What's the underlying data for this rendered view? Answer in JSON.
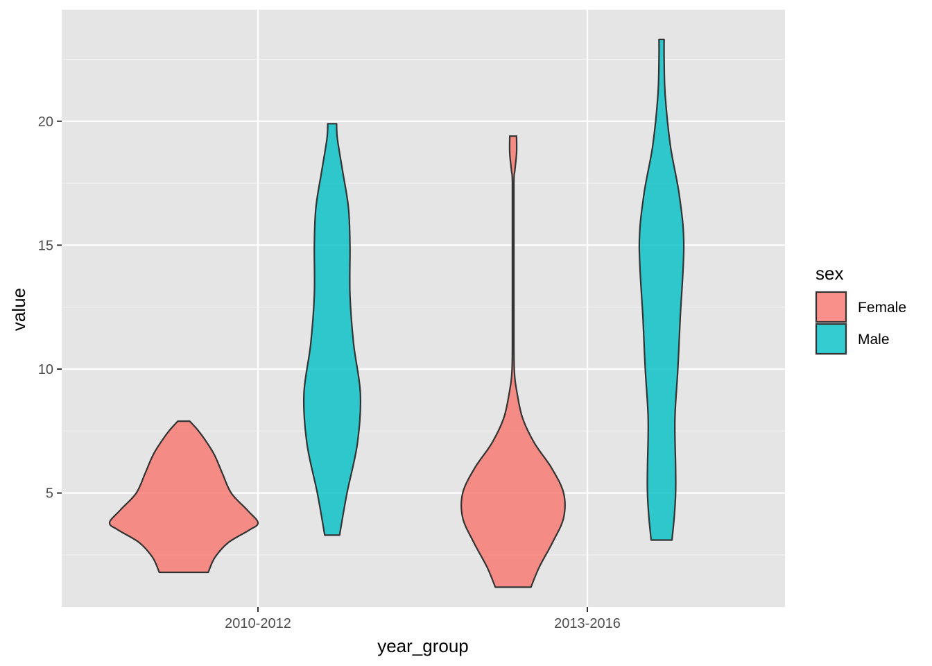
{
  "chart_data": {
    "type": "violin",
    "xlabel": "year_group",
    "ylabel": "value",
    "categories": [
      "2010-2012",
      "2013-2016"
    ],
    "y_ticks": [
      5,
      10,
      15,
      20
    ],
    "ylim": [
      0.4,
      24.5
    ],
    "grid": true,
    "legend": {
      "title": "sex",
      "position": "right",
      "entries": [
        {
          "label": "Female",
          "color": "#F8766D"
        },
        {
          "label": "Male",
          "color": "#00BFC4"
        }
      ]
    },
    "series": [
      {
        "name": "Female",
        "color": "#F8766D",
        "groups": [
          {
            "category": "2010-2012",
            "min": 1.8,
            "max": 7.9,
            "profile": [
              [
                1.8,
                0.33
              ],
              [
                2.4,
                0.42
              ],
              [
                3.0,
                0.6
              ],
              [
                3.5,
                0.88
              ],
              [
                3.8,
                1.0
              ],
              [
                4.3,
                0.86
              ],
              [
                5.0,
                0.64
              ],
              [
                5.8,
                0.52
              ],
              [
                6.5,
                0.42
              ],
              [
                7.0,
                0.32
              ],
              [
                7.5,
                0.2
              ],
              [
                7.9,
                0.08
              ]
            ]
          },
          {
            "category": "2013-2016",
            "min": 1.2,
            "max": 19.4,
            "profile": [
              [
                1.2,
                0.24
              ],
              [
                2.0,
                0.35
              ],
              [
                3.0,
                0.53
              ],
              [
                4.0,
                0.68
              ],
              [
                5.0,
                0.68
              ],
              [
                6.0,
                0.52
              ],
              [
                7.0,
                0.29
              ],
              [
                8.0,
                0.13
              ],
              [
                9.0,
                0.055
              ],
              [
                10.0,
                0.015
              ],
              [
                12.0,
                0.01
              ],
              [
                15.0,
                0.01
              ],
              [
                17.5,
                0.01
              ],
              [
                18.0,
                0.022
              ],
              [
                18.7,
                0.046
              ],
              [
                19.4,
                0.046
              ]
            ]
          }
        ]
      },
      {
        "name": "Male",
        "color": "#00BFC4",
        "groups": [
          {
            "category": "2010-2012",
            "min": 3.3,
            "max": 19.9,
            "profile": [
              [
                3.3,
                0.1
              ],
              [
                5.0,
                0.2
              ],
              [
                7.0,
                0.34
              ],
              [
                9.0,
                0.38
              ],
              [
                11.0,
                0.29
              ],
              [
                13.0,
                0.24
              ],
              [
                15.0,
                0.24
              ],
              [
                16.5,
                0.22
              ],
              [
                18.0,
                0.14
              ],
              [
                19.3,
                0.07
              ],
              [
                19.9,
                0.06
              ]
            ]
          },
          {
            "category": "2013-2016",
            "min": 3.1,
            "max": 23.3,
            "profile": [
              [
                3.1,
                0.14
              ],
              [
                4.0,
                0.17
              ],
              [
                5.0,
                0.19
              ],
              [
                6.0,
                0.19
              ],
              [
                8.0,
                0.18
              ],
              [
                10.0,
                0.22
              ],
              [
                12.0,
                0.25
              ],
              [
                15.0,
                0.3
              ],
              [
                17.0,
                0.24
              ],
              [
                19.0,
                0.12
              ],
              [
                21.0,
                0.05
              ],
              [
                22.5,
                0.035
              ],
              [
                23.3,
                0.035
              ]
            ]
          }
        ]
      }
    ]
  }
}
